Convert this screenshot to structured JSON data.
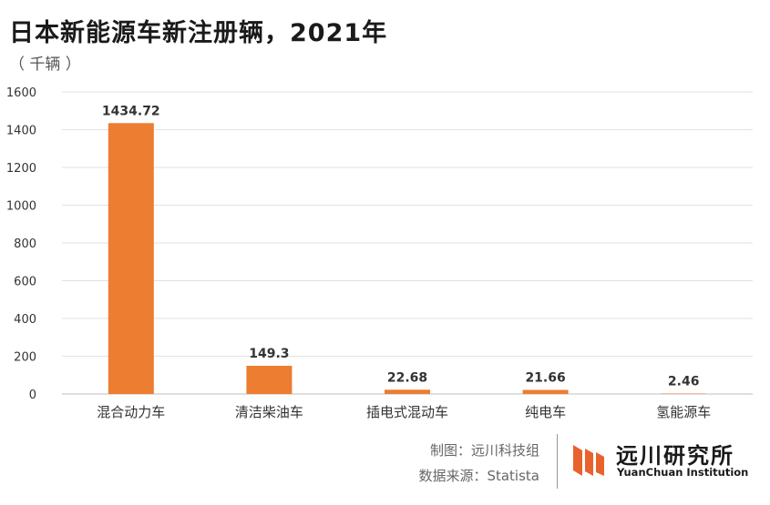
{
  "header": {
    "title": "日本新能源车新注册辆，2021年",
    "unit": "（ 千辆 ）"
  },
  "chart_data": {
    "type": "bar",
    "title": "日本新能源车新注册辆，2021年",
    "ylabel": "（ 千辆 ）",
    "xlabel": "",
    "categories": [
      "混合动力车",
      "清洁柴油车",
      "插电式混动车",
      "纯电车",
      "氢能源车"
    ],
    "values": [
      1434.72,
      149.3,
      22.68,
      21.66,
      2.46
    ],
    "value_labels": [
      "1434.72",
      "149.3",
      "22.68",
      "21.66",
      "2.46"
    ],
    "ylim": [
      0,
      1600
    ],
    "yticks": [
      0,
      200,
      400,
      600,
      800,
      1000,
      1200,
      1400,
      1600
    ],
    "grid": true,
    "bar_color": "#ED7D31"
  },
  "footer": {
    "credit_line1": "制图：远川科技组",
    "credit_line2": "数据来源：Statista",
    "logo_cn": "远川研究所",
    "logo_en": "YuanChuan Institution",
    "logo_color": "#E8632B"
  }
}
